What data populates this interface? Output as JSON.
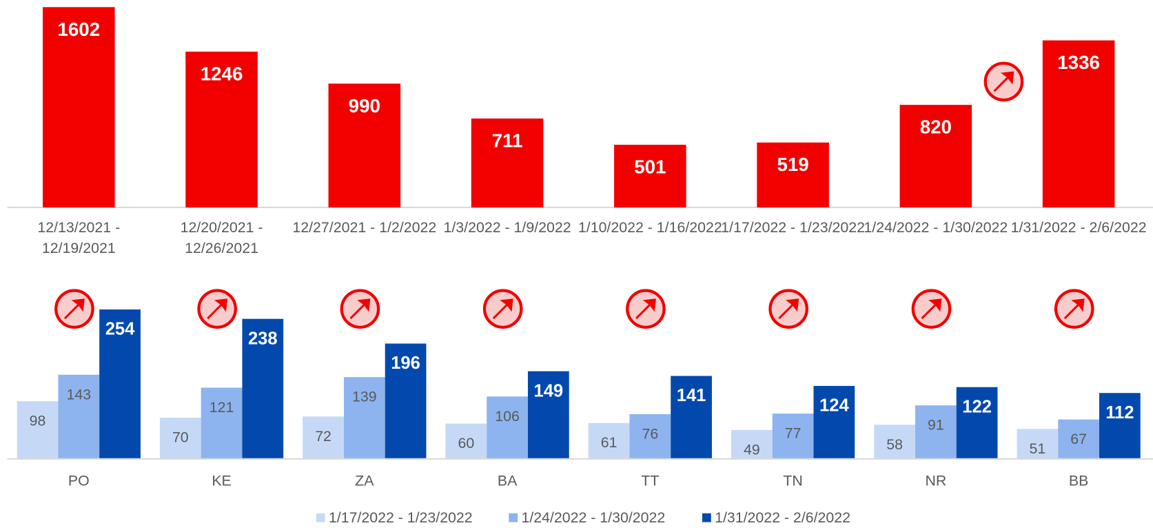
{
  "chart_data": [
    {
      "type": "bar",
      "categories": [
        "12/13/2021 - 12/19/2021",
        "12/20/2021 - 12/26/2021",
        "12/27/2021 - 1/2/2022",
        "1/3/2022 - 1/9/2022",
        "1/10/2022 - 1/16/2022",
        "1/17/2022 - 1/23/2022",
        "1/24/2022 - 1/30/2022",
        "1/31/2022 - 2/6/2022"
      ],
      "values": [
        1602,
        1246,
        990,
        711,
        501,
        519,
        820,
        1336
      ],
      "color": "#f20000"
    },
    {
      "type": "grouped-bar",
      "categories": [
        "PO",
        "KE",
        "ZA",
        "BA",
        "TT",
        "TN",
        "NR",
        "BB"
      ],
      "series": [
        {
          "name": "1/17/2022 - 1/23/2022",
          "color": "#c5d9f7",
          "values": [
            98,
            70,
            72,
            60,
            61,
            49,
            58,
            51
          ]
        },
        {
          "name": "1/24/2022 - 1/30/2022",
          "color": "#8db4ee",
          "values": [
            143,
            121,
            139,
            106,
            76,
            77,
            91,
            67
          ]
        },
        {
          "name": "1/31/2022 - 2/6/2022",
          "color": "#0349ad",
          "values": [
            254,
            238,
            196,
            149,
            141,
            124,
            122,
            112
          ]
        }
      ],
      "legend": "bottom"
    }
  ]
}
